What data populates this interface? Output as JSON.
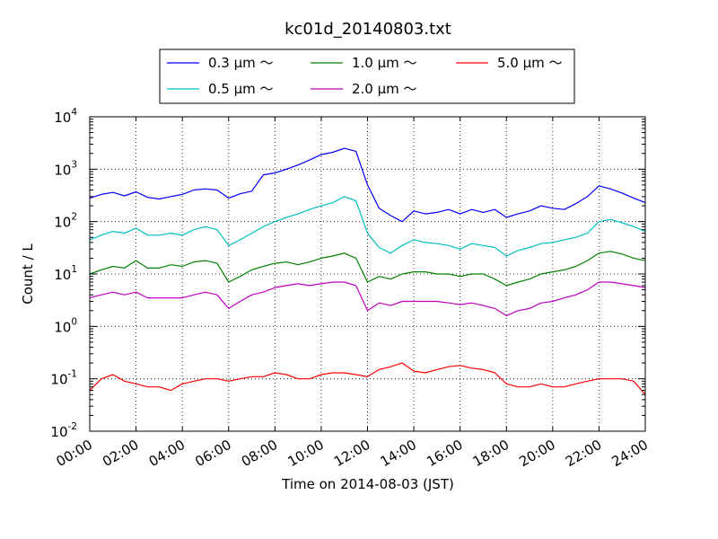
{
  "chart_data": {
    "type": "line",
    "title": "kc01d_20140803.txt",
    "xlabel": "Time on 2014-08-03 (JST)",
    "ylabel": "Count / L",
    "yscale": "log",
    "ylim": [
      0.01,
      10000
    ],
    "xlim": [
      "00:00",
      "24:00"
    ],
    "grid": true,
    "legend": "top-center",
    "x_ticks": [
      "00:00",
      "02:00",
      "04:00",
      "06:00",
      "08:00",
      "10:00",
      "12:00",
      "14:00",
      "16:00",
      "18:00",
      "20:00",
      "22:00",
      "24:00"
    ],
    "y_ticks": [
      {
        "base": "10",
        "exp": "-2",
        "value": 0.01
      },
      {
        "base": "10",
        "exp": "-1",
        "value": 0.1
      },
      {
        "base": "10",
        "exp": "0",
        "value": 1
      },
      {
        "base": "10",
        "exp": "1",
        "value": 10
      },
      {
        "base": "10",
        "exp": "2",
        "value": 100
      },
      {
        "base": "10",
        "exp": "3",
        "value": 1000
      },
      {
        "base": "10",
        "exp": "4",
        "value": 10000
      }
    ],
    "x": [
      "00:00",
      "00:30",
      "01:00",
      "01:30",
      "02:00",
      "02:30",
      "03:00",
      "03:30",
      "04:00",
      "04:30",
      "05:00",
      "05:30",
      "06:00",
      "06:30",
      "07:00",
      "07:30",
      "08:00",
      "08:30",
      "09:00",
      "09:30",
      "10:00",
      "10:30",
      "11:00",
      "11:30",
      "12:00",
      "12:30",
      "13:00",
      "13:30",
      "14:00",
      "14:30",
      "15:00",
      "15:30",
      "16:00",
      "16:30",
      "17:00",
      "17:30",
      "18:00",
      "18:30",
      "19:00",
      "19:30",
      "20:00",
      "20:30",
      "21:00",
      "21:30",
      "22:00",
      "22:30",
      "23:00",
      "23:30",
      "24:00"
    ],
    "series": [
      {
        "name": "0.3 μm ～",
        "color": "#0000ff",
        "values": [
          280,
          330,
          360,
          310,
          370,
          290,
          270,
          300,
          330,
          400,
          420,
          400,
          280,
          340,
          380,
          780,
          850,
          1000,
          1200,
          1500,
          1900,
          2100,
          2500,
          2200,
          500,
          180,
          130,
          100,
          160,
          140,
          150,
          170,
          140,
          170,
          150,
          170,
          120,
          140,
          160,
          200,
          180,
          170,
          220,
          300,
          480,
          420,
          350,
          280,
          230
        ]
      },
      {
        "name": "0.5 μm ～",
        "color": "#00bfbf",
        "values": [
          45,
          55,
          65,
          60,
          75,
          55,
          55,
          60,
          55,
          70,
          80,
          70,
          35,
          45,
          60,
          80,
          100,
          120,
          140,
          170,
          200,
          230,
          300,
          250,
          60,
          32,
          25,
          35,
          45,
          40,
          38,
          35,
          30,
          38,
          35,
          32,
          22,
          28,
          32,
          38,
          40,
          45,
          50,
          60,
          100,
          110,
          95,
          80,
          65
        ]
      },
      {
        "name": "1.0 μm ～",
        "color": "#008000",
        "values": [
          10,
          12,
          14,
          13,
          18,
          13,
          13,
          15,
          14,
          17,
          18,
          16,
          7,
          9,
          12,
          14,
          16,
          17,
          15,
          17,
          20,
          22,
          25,
          20,
          7,
          9,
          8,
          10,
          11,
          11,
          10,
          10,
          9,
          10,
          10,
          8,
          6,
          7,
          8,
          10,
          11,
          12,
          14,
          18,
          25,
          27,
          24,
          20,
          18
        ]
      },
      {
        "name": "2.0 μm ～",
        "color": "#bf00bf",
        "values": [
          3.5,
          4,
          4.5,
          4,
          4.5,
          3.5,
          3.5,
          3.5,
          3.5,
          4,
          4.5,
          4,
          2.2,
          3,
          4,
          4.5,
          5.5,
          6,
          6.5,
          6,
          6.5,
          7,
          7,
          6,
          2,
          2.8,
          2.5,
          3,
          3,
          3,
          3,
          2.8,
          2.6,
          2.8,
          2.5,
          2.2,
          1.6,
          2,
          2.2,
          2.8,
          3,
          3.5,
          4,
          5,
          7,
          7,
          6.5,
          6,
          5.5
        ]
      },
      {
        "name": "5.0 μm ～",
        "color": "#ff0000",
        "values": [
          0.06,
          0.1,
          0.12,
          0.09,
          0.08,
          0.07,
          0.07,
          0.06,
          0.08,
          0.09,
          0.1,
          0.1,
          0.09,
          0.1,
          0.11,
          0.11,
          0.13,
          0.12,
          0.1,
          0.1,
          0.12,
          0.13,
          0.13,
          0.12,
          0.11,
          0.15,
          0.17,
          0.2,
          0.14,
          0.13,
          0.15,
          0.17,
          0.18,
          0.16,
          0.15,
          0.13,
          0.08,
          0.07,
          0.07,
          0.08,
          0.07,
          0.07,
          0.08,
          0.09,
          0.1,
          0.1,
          0.1,
          0.09,
          0.05
        ]
      }
    ]
  }
}
